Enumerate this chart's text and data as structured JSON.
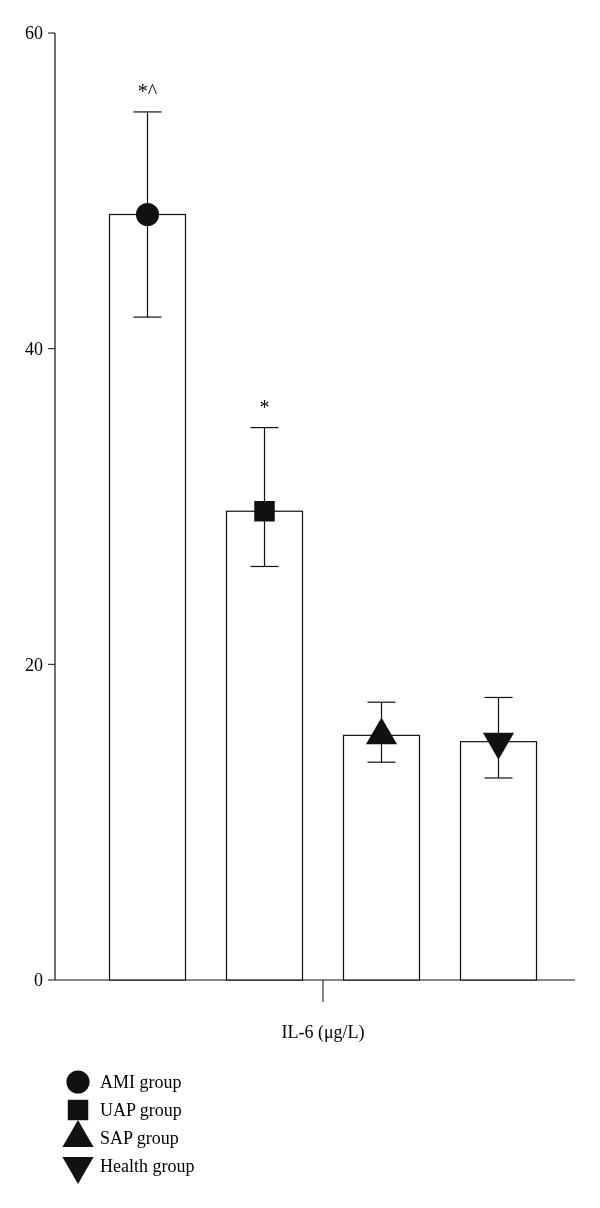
{
  "chart_data": {
    "type": "bar",
    "categories": [
      "IL-6 (μg/L)"
    ],
    "series": [
      {
        "color": "#ffffff",
        "values": [
          48.5
        ],
        "errors": [
          [
            42.0,
            55.0
          ]
        ]
      },
      {
        "color": "#ffffff",
        "values": [
          29.7
        ],
        "errors": [
          [
            26.2,
            35.0
          ]
        ]
      },
      {
        "color": "#ffffff",
        "values": [
          15.5
        ],
        "errors": [
          [
            13.8,
            17.6
          ]
        ]
      },
      {
        "color": "#ffffff",
        "values": [
          15.1
        ],
        "errors": [
          [
            12.8,
            17.9
          ]
        ]
      },
      {
        "type": "scatter",
        "name": "AMI group",
        "color": "#111111",
        "marker": "circle",
        "x": [
          "IL-6 (μg/L)"
        ],
        "values": [
          48.5
        ]
      },
      {
        "type": "scatter",
        "name": "UAP group",
        "color": "#111111",
        "marker": "square",
        "x": [
          "IL-6 (μg/L)"
        ],
        "values": [
          29.7
        ]
      },
      {
        "type": "scatter",
        "name": "SAP group",
        "color": "#111111",
        "marker": "triangle",
        "x": [
          "IL-6 (μg/L)"
        ],
        "values": [
          15.5
        ]
      },
      {
        "type": "scatter",
        "name": "Health group",
        "color": "#111111",
        "marker": "triangle-down",
        "x": [
          "IL-6 (μg/L)"
        ],
        "values": [
          15.1
        ]
      }
    ],
    "ylim": [
      0,
      60
    ],
    "yticks": [
      0,
      20,
      40,
      60
    ],
    "grid": false,
    "legend": "bottom left",
    "annotations": [
      "*^",
      "*"
    ]
  }
}
